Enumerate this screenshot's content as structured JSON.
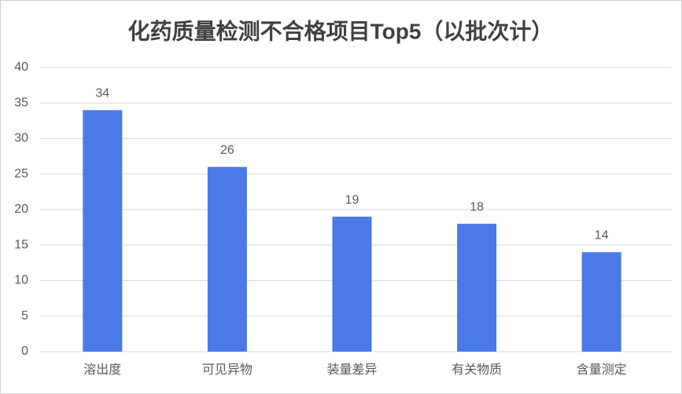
{
  "chart_data": {
    "type": "bar",
    "title": "化药质量检测不合格项目Top5（以批次计）",
    "categories": [
      "溶出度",
      "可见异物",
      "装量差异",
      "有关物质",
      "含量测定"
    ],
    "values": [
      34,
      26,
      19,
      18,
      14
    ],
    "color": "#4a7ae8",
    "ylim": [
      0,
      40
    ],
    "yticks": [
      0,
      5,
      10,
      15,
      20,
      25,
      30,
      35,
      40
    ],
    "grid": true
  }
}
